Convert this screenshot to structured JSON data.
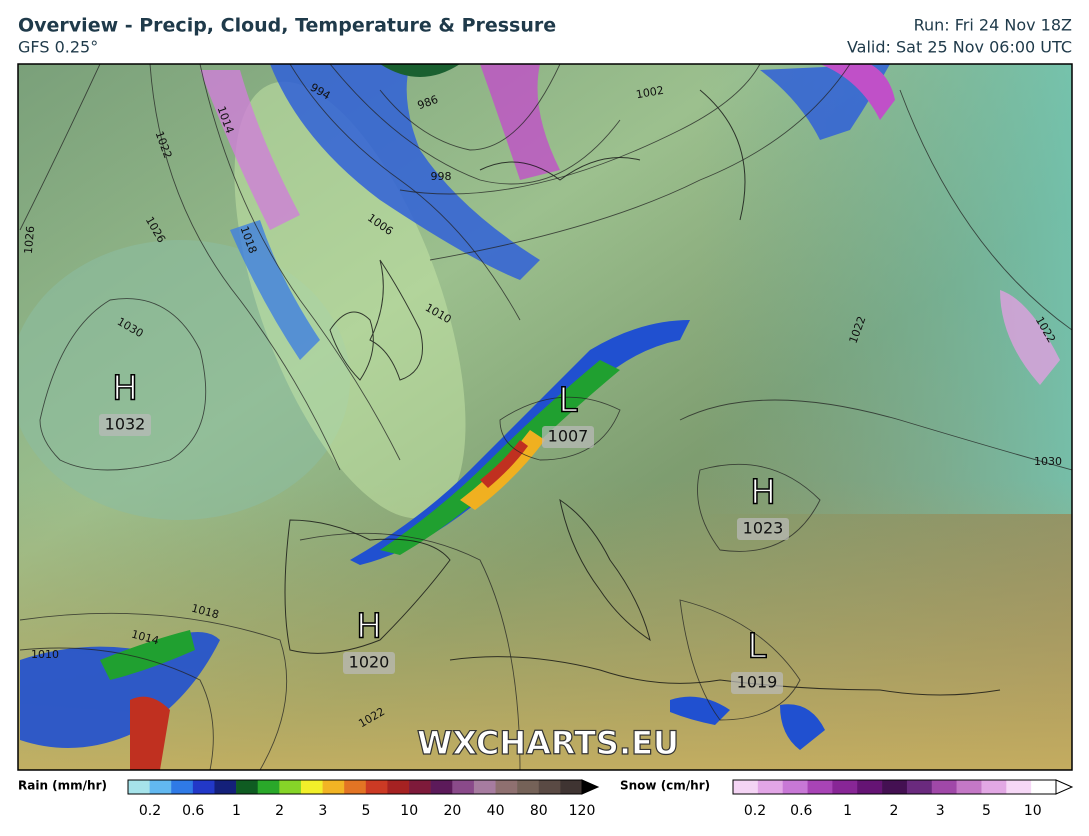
{
  "header": {
    "title": "Overview - Precip, Cloud, Temperature & Pressure",
    "model": "GFS 0.25°",
    "run": "Run: Fri 24 Nov 18Z",
    "valid": "Valid: Sat 25 Nov 06:00 UTC"
  },
  "map": {
    "pressure_centers": [
      {
        "symbol": "H",
        "value": "1032"
      },
      {
        "symbol": "L",
        "value": "1007"
      },
      {
        "symbol": "H",
        "value": "1023"
      },
      {
        "symbol": "H",
        "value": "1020"
      },
      {
        "symbol": "L",
        "value": "1019"
      }
    ],
    "isobar_labels": [
      "1022",
      "1026",
      "1026",
      "1030",
      "1014",
      "1018",
      "994",
      "986",
      "998",
      "1006",
      "1010",
      "1002",
      "1022",
      "1030",
      "1018",
      "1014",
      "1010",
      "1022",
      "1022"
    ],
    "watermark": "WXCHARTS.EU"
  },
  "legends": {
    "rain": {
      "title": "Rain (mm/hr)",
      "ticks": [
        "0.2",
        "0.6",
        "1",
        "2",
        "3",
        "5",
        "10",
        "20",
        "40",
        "80",
        "120"
      ],
      "colors": [
        "#a6e3ea",
        "#62b8f0",
        "#2f7ae6",
        "#2238c8",
        "#14207a",
        "#0f5c22",
        "#2aa82a",
        "#86d428",
        "#f2ef2a",
        "#f2b424",
        "#e37424",
        "#cc3a24",
        "#a62222",
        "#7e1a3a",
        "#5c1a5a",
        "#8a4a8a",
        "#a77ca0",
        "#8f7070",
        "#756258",
        "#5a4a44",
        "#3f3432"
      ]
    },
    "snow": {
      "title": "Snow (cm/hr)",
      "ticks": [
        "0.2",
        "0.6",
        "1",
        "2",
        "3",
        "5",
        "10"
      ],
      "colors": [
        "#f4d4f4",
        "#e2a6e6",
        "#c878d6",
        "#a844b6",
        "#882696",
        "#651474",
        "#441052",
        "#6a2a7e",
        "#a048a8",
        "#c478c6",
        "#e2a8e4",
        "#f6d8f6",
        "#ffffff"
      ]
    }
  }
}
